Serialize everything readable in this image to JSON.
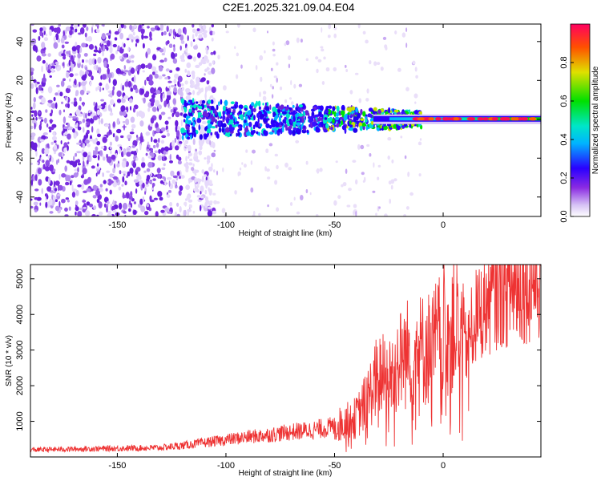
{
  "chart_data": [
    {
      "type": "heatmap",
      "title": "C2E1.2025.321.09.04.E04",
      "xlabel": "Height of straight line (km)",
      "ylabel": "Frequency (Hz)",
      "xlim": [
        -190,
        45
      ],
      "ylim": [
        -50,
        49
      ],
      "xticks": [
        -150,
        -100,
        -50,
        0
      ],
      "yticks": [
        -40,
        -20,
        0,
        20,
        40
      ],
      "colorbar": {
        "label": "Normalized spectral amplitude",
        "range": [
          0,
          1
        ],
        "ticks": [
          0.0,
          0.2,
          0.4,
          0.6,
          0.8
        ],
        "tick_labels": [
          "0.0",
          "0.2",
          "0.4",
          "0.6",
          "0.8"
        ]
      },
      "description_points": {
        "noise_region_x": [
          -190,
          -120
        ],
        "signal_band_center_hz": 0,
        "signal_band_start_km": -120,
        "strong_peak_start_km": -10
      }
    },
    {
      "type": "line",
      "title": "",
      "xlabel": "Height of straight line (km)",
      "ylabel": "SNR (10 * v/v)",
      "xlim": [
        -190,
        45
      ],
      "ylim": [
        0,
        5400
      ],
      "xticks": [
        -150,
        -100,
        -50,
        0
      ],
      "yticks": [
        1000,
        2000,
        3000,
        4000,
        5000
      ],
      "series": [
        {
          "name": "SNR",
          "color": "#ee3333",
          "x": [
            -190,
            -170,
            -150,
            -130,
            -120,
            -110,
            -100,
            -90,
            -80,
            -70,
            -60,
            -50,
            -40,
            -35,
            -30,
            -25,
            -20,
            -15,
            -10,
            -5,
            0,
            5,
            10,
            15,
            20,
            25,
            30,
            35,
            40,
            45
          ],
          "values": [
            200,
            220,
            240,
            260,
            320,
            400,
            480,
            560,
            620,
            700,
            760,
            850,
            1100,
            1600,
            2300,
            2200,
            2700,
            3000,
            3000,
            3100,
            3500,
            3900,
            3000,
            3900,
            4300,
            4600,
            4700,
            4800,
            4900,
            4950
          ]
        }
      ]
    }
  ]
}
